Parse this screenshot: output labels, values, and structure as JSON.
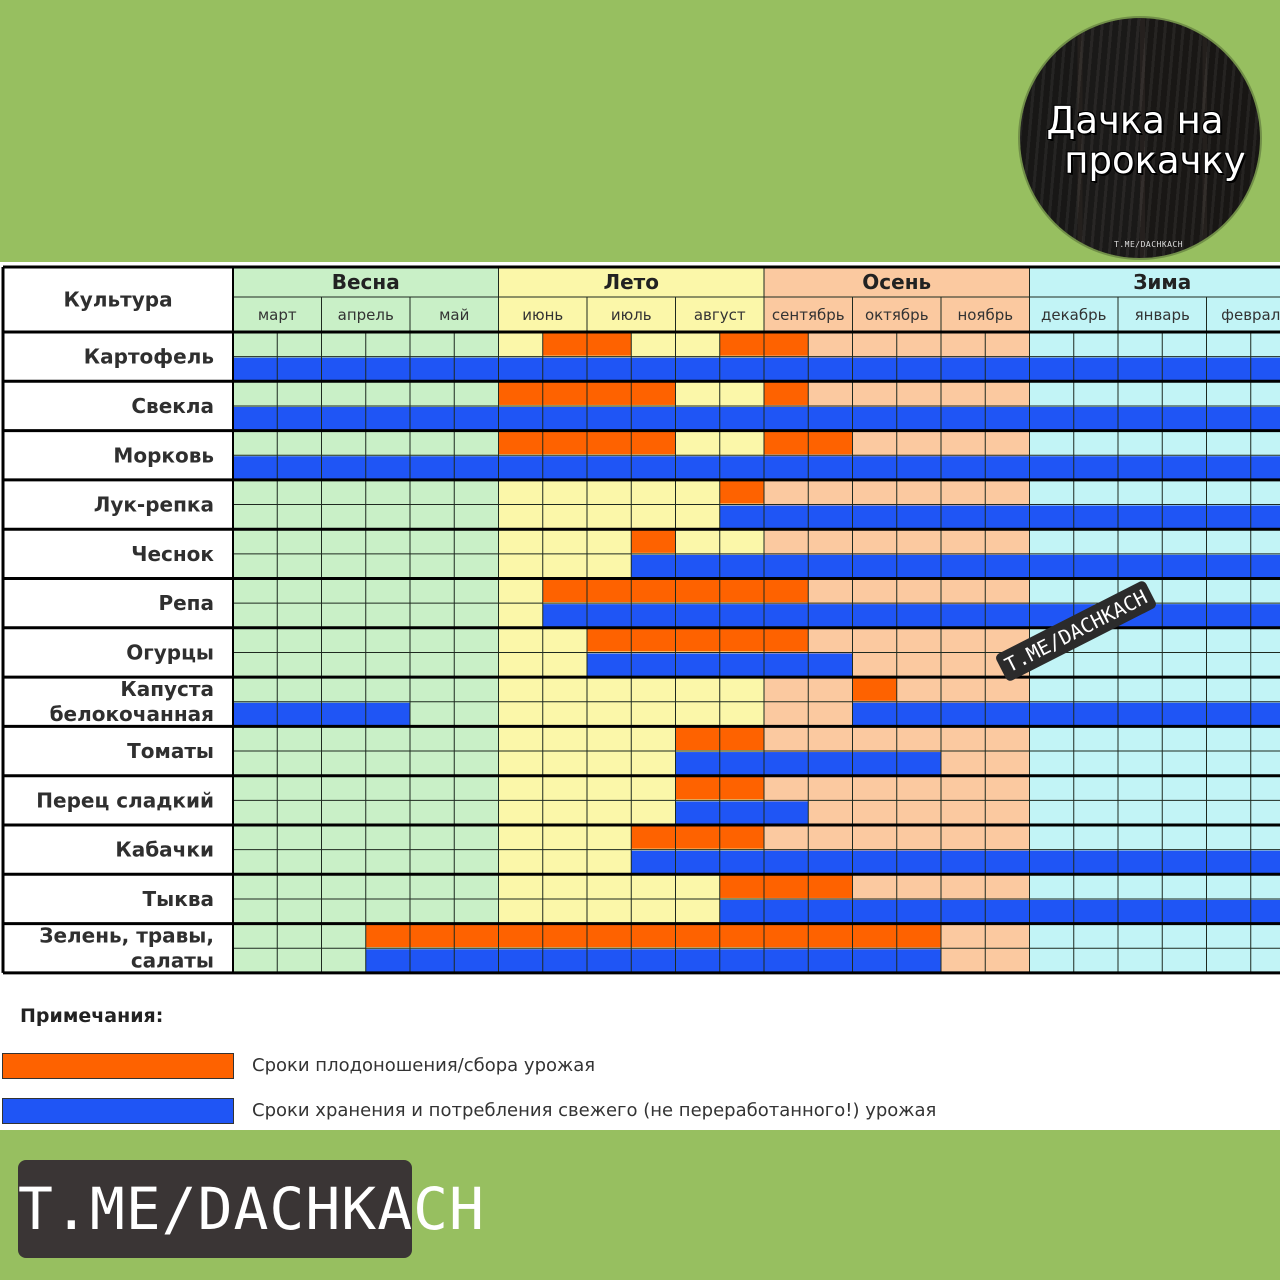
{
  "logo": {
    "line1": "Дачка на",
    "line2": "прокачку",
    "small": "T.ME/DACHKACH"
  },
  "table": {
    "header_culture": "Культура",
    "seasons": [
      {
        "label": "Весна",
        "color": "#c9f0c7"
      },
      {
        "label": "Лето",
        "color": "#fbf7a9"
      },
      {
        "label": "Осень",
        "color": "#fbc9a0"
      },
      {
        "label": "Зима",
        "color": "#c2f4f6"
      }
    ],
    "months": [
      "март",
      "апрель",
      "май",
      "июнь",
      "июль",
      "август",
      "сентябрь",
      "октябрь",
      "ноябрь",
      "декабрь",
      "январь",
      "феврал"
    ],
    "crops": [
      {
        "name": [
          "Картофель"
        ],
        "harvest": [
          [
            3.5,
            4.5
          ],
          [
            5.5,
            6.5
          ]
        ],
        "storage": [
          [
            0,
            12
          ]
        ]
      },
      {
        "name": [
          "Свекла"
        ],
        "harvest": [
          [
            3,
            5
          ],
          [
            6,
            6.5
          ]
        ],
        "storage": [
          [
            0,
            12
          ]
        ]
      },
      {
        "name": [
          "Морковь"
        ],
        "harvest": [
          [
            3,
            5
          ],
          [
            6,
            7
          ]
        ],
        "storage": [
          [
            0,
            12
          ]
        ]
      },
      {
        "name": [
          "Лук-репка"
        ],
        "harvest": [
          [
            5.5,
            6
          ]
        ],
        "storage": [
          [
            5.5,
            12
          ]
        ]
      },
      {
        "name": [
          "Чеснок"
        ],
        "harvest": [
          [
            4.5,
            5
          ]
        ],
        "storage": [
          [
            4.5,
            12
          ]
        ]
      },
      {
        "name": [
          "Репа"
        ],
        "harvest": [
          [
            3.5,
            6.5
          ]
        ],
        "storage": [
          [
            3.5,
            12
          ]
        ]
      },
      {
        "name": [
          "Огурцы"
        ],
        "harvest": [
          [
            4,
            6.5
          ]
        ],
        "storage": [
          [
            4,
            7
          ]
        ]
      },
      {
        "name": [
          "Капуста",
          "белокочанная"
        ],
        "harvest": [
          [
            7,
            7.5
          ]
        ],
        "storage": [
          [
            0,
            2
          ],
          [
            7,
            12
          ]
        ]
      },
      {
        "name": [
          "Томаты"
        ],
        "harvest": [
          [
            5,
            6
          ]
        ],
        "storage": [
          [
            5,
            8
          ]
        ]
      },
      {
        "name": [
          "Перец сладкий"
        ],
        "harvest": [
          [
            5,
            6
          ]
        ],
        "storage": [
          [
            5,
            6.5
          ]
        ]
      },
      {
        "name": [
          "Кабачки"
        ],
        "harvest": [
          [
            4.5,
            6
          ]
        ],
        "storage": [
          [
            4.5,
            12
          ]
        ]
      },
      {
        "name": [
          "Тыква"
        ],
        "harvest": [
          [
            5.5,
            7
          ]
        ],
        "storage": [
          [
            5.5,
            12
          ]
        ]
      },
      {
        "name": [
          "Зелень, травы,",
          "салаты"
        ],
        "harvest": [
          [
            1.5,
            8
          ]
        ],
        "storage": [
          [
            1.5,
            8
          ]
        ]
      }
    ]
  },
  "notes": {
    "title": "Примечания:",
    "harvest_label": "Сроки плодоношения/сбора урожая",
    "storage_label": "Сроки хранения и потребления свежего (не переработанного!) урожая"
  },
  "colors": {
    "harvest": "#fe6200",
    "storage": "#1f55f5",
    "grid": "#1e2a20"
  },
  "watermark": "T.ME/DACHKACH",
  "badge": "T.ME/DACHKACH"
}
